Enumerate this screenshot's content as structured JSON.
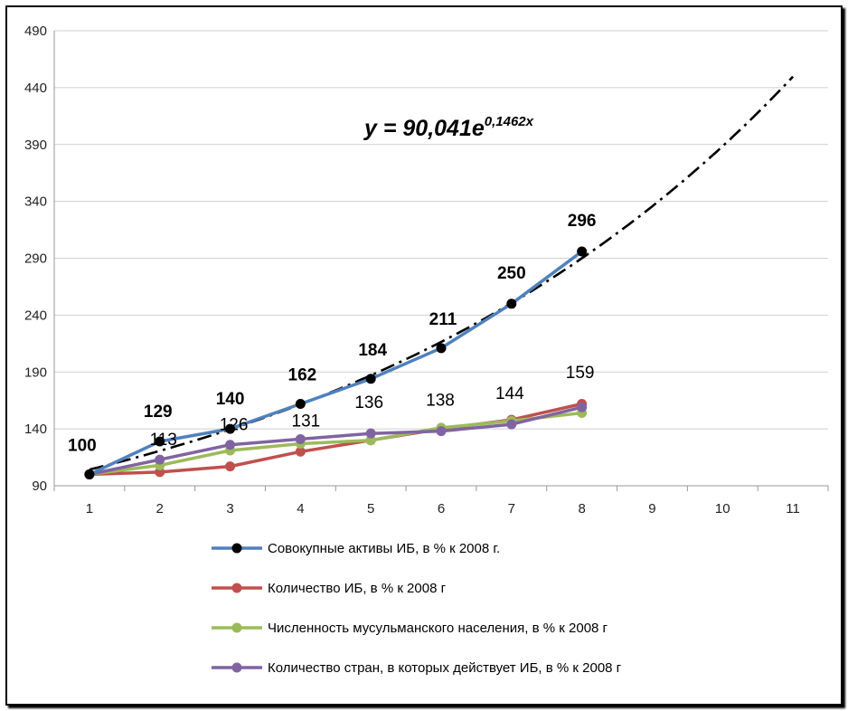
{
  "chart_data": {
    "type": "line",
    "title": "",
    "xlabel": "",
    "ylabel": "",
    "xlim": [
      1,
      11
    ],
    "ylim": [
      90,
      490
    ],
    "y_ticks": [
      "490",
      "440",
      "390",
      "340",
      "290",
      "240",
      "190",
      "140",
      "90"
    ],
    "x_ticks": [
      "1",
      "2",
      "3",
      "4",
      "5",
      "6",
      "7",
      "8",
      "9",
      "10",
      "11"
    ],
    "grid": "horizontal",
    "legend_position": "bottom",
    "series": [
      {
        "name": "Совокупные активы ИБ, в % к 2008 г.",
        "color": "#4f81bd",
        "marker_color": "#000000",
        "x": [
          1,
          2,
          3,
          4,
          5,
          6,
          7,
          8
        ],
        "values": [
          100,
          129,
          140,
          162,
          184,
          211,
          250,
          296
        ],
        "labels": [
          "100",
          "129",
          "140",
          "162",
          "184",
          "211",
          "250",
          "296"
        ]
      },
      {
        "name": "Количество ИБ, в % к 2008 г",
        "color": "#c0504d",
        "marker_color": "#c0504d",
        "x": [
          1,
          2,
          3,
          4,
          5,
          6,
          7,
          8
        ],
        "values": [
          100,
          102,
          107,
          120,
          130,
          140,
          148,
          162
        ]
      },
      {
        "name": "Численность мусульманского населения,  в % к 2008 г",
        "color": "#9bbb59",
        "marker_color": "#9bbb59",
        "x": [
          1,
          2,
          3,
          4,
          5,
          6,
          7,
          8
        ],
        "values": [
          100,
          108,
          121,
          127,
          130,
          141,
          147,
          154
        ]
      },
      {
        "name": "Количество стран, в которых действует ИБ, в % к 2008 г",
        "color": "#8064a2",
        "marker_color": "#8064a2",
        "x": [
          1,
          2,
          3,
          4,
          5,
          6,
          7,
          8
        ],
        "values": [
          100,
          113,
          126,
          131,
          136,
          138,
          144,
          159
        ],
        "labels": [
          "",
          "113",
          "126",
          "131",
          "136",
          "138",
          "144",
          "159"
        ]
      }
    ],
    "trendline": {
      "type": "exponential",
      "a": 90.041,
      "b": 0.1462,
      "x_range": [
        1,
        11
      ],
      "equation_text": {
        "main": "y = 90,041e",
        "exponent": "0,1462x"
      }
    }
  }
}
